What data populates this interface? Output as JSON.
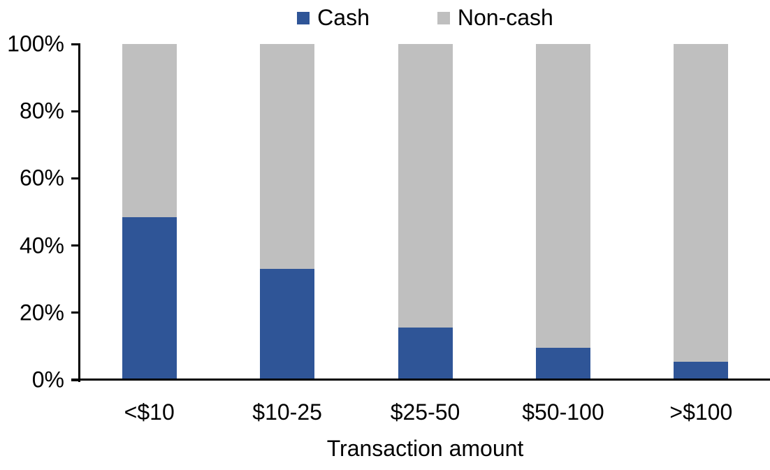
{
  "chart_data": {
    "type": "bar",
    "stacked": true,
    "title": "",
    "xlabel": "Transaction amount",
    "ylabel": "",
    "categories": [
      "<$10",
      "$10-25",
      "$25-50",
      "$50-100",
      ">$100"
    ],
    "series": [
      {
        "name": "Cash",
        "color": "#2F5597",
        "values": [
          48.5,
          33,
          15.5,
          9.5,
          5.5
        ]
      },
      {
        "name": "Non-cash",
        "color": "#BFBFBF",
        "values": [
          51.5,
          67,
          84.5,
          90.5,
          94.5
        ]
      }
    ],
    "ylim": [
      0,
      100
    ],
    "yticks": [
      "0%",
      "20%",
      "40%",
      "60%",
      "80%",
      "100%"
    ],
    "ytick_values": [
      0,
      20,
      40,
      60,
      80,
      100
    ],
    "legend_position": "top",
    "grid": false,
    "axis_color": "#000000",
    "text_color": "#000000",
    "background": "#FFFFFF"
  }
}
